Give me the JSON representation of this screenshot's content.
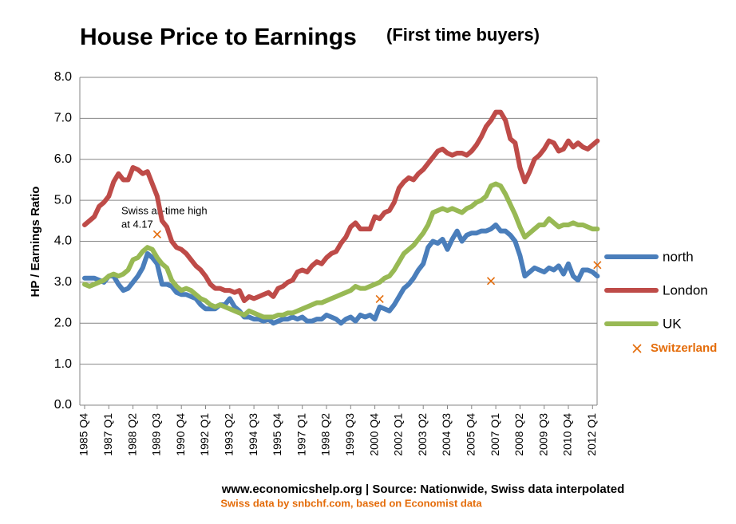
{
  "chart_data": {
    "type": "line",
    "title": "House Price to Earnings",
    "subtitle": "(First time buyers)",
    "y_label": "HP / Earnings Ratio",
    "annotation": [
      "Swiss all-time high",
      "at 4.17"
    ],
    "source": "www.economicshelp.org | Source: Nationwide, Swiss data interpolated",
    "note": "Swiss data by snbchf.com, based on Economist data",
    "ylim": [
      0,
      8
    ],
    "yticks": [
      {
        "value": 0,
        "label": "0.0"
      },
      {
        "value": 1,
        "label": "1.0"
      },
      {
        "value": 2,
        "label": "2.0"
      },
      {
        "value": 3,
        "label": "3.0"
      },
      {
        "value": 4,
        "label": "4.0"
      },
      {
        "value": 5,
        "label": "5.0"
      },
      {
        "value": 6,
        "label": "6.0"
      },
      {
        "value": 7,
        "label": "7.0"
      },
      {
        "value": 8,
        "label": "8.0"
      }
    ],
    "grid": true,
    "legend": "right",
    "categories": [
      "1985 Q4",
      null,
      null,
      null,
      null,
      "1987 Q1",
      null,
      null,
      null,
      null,
      "1988 Q2",
      null,
      null,
      null,
      null,
      "1989 Q3",
      null,
      null,
      null,
      null,
      "1990 Q4",
      null,
      null,
      null,
      null,
      "1992 Q1",
      null,
      null,
      null,
      null,
      "1993 Q2",
      null,
      null,
      null,
      null,
      "1994 Q3",
      null,
      null,
      null,
      null,
      "1995 Q4",
      null,
      null,
      null,
      null,
      "1997 Q1",
      null,
      null,
      null,
      null,
      "1998 Q2",
      null,
      null,
      null,
      null,
      "1999 Q3",
      null,
      null,
      null,
      null,
      "2000 Q4",
      null,
      null,
      null,
      null,
      "2002 Q1",
      null,
      null,
      null,
      null,
      "2003 Q2",
      null,
      null,
      null,
      null,
      "2004 Q3",
      null,
      null,
      null,
      null,
      "2005 Q4",
      null,
      null,
      null,
      null,
      "2007 Q1",
      null,
      null,
      null,
      null,
      "2008 Q2",
      null,
      null,
      null,
      null,
      "2009 Q3",
      null,
      null,
      null,
      null,
      "2010 Q4",
      null,
      null,
      null,
      null,
      "2012 Q1",
      null
    ],
    "series": [
      {
        "name": "north",
        "color": "#4a7ebb",
        "marker": "line",
        "values": [
          3.1,
          3.1,
          3.1,
          3.05,
          3.0,
          3.15,
          3.15,
          2.95,
          2.8,
          2.85,
          3.0,
          3.15,
          3.35,
          3.7,
          3.6,
          3.45,
          2.95,
          2.95,
          2.9,
          2.75,
          2.7,
          2.7,
          2.65,
          2.6,
          2.45,
          2.35,
          2.35,
          2.35,
          2.45,
          2.45,
          2.6,
          2.4,
          2.3,
          2.15,
          2.15,
          2.1,
          2.1,
          2.05,
          2.1,
          2.0,
          2.05,
          2.1,
          2.1,
          2.15,
          2.1,
          2.15,
          2.05,
          2.05,
          2.1,
          2.1,
          2.2,
          2.15,
          2.1,
          2.0,
          2.1,
          2.15,
          2.05,
          2.2,
          2.15,
          2.2,
          2.1,
          2.4,
          2.35,
          2.3,
          2.45,
          2.65,
          2.85,
          2.95,
          3.1,
          3.3,
          3.45,
          3.85,
          4.0,
          3.95,
          4.05,
          3.8,
          4.05,
          4.25,
          4.0,
          4.15,
          4.2,
          4.2,
          4.25,
          4.25,
          4.3,
          4.4,
          4.25,
          4.25,
          4.15,
          4.0,
          3.65,
          3.15,
          3.25,
          3.35,
          3.3,
          3.25,
          3.35,
          3.3,
          3.4,
          3.2,
          3.45,
          3.15,
          3.05,
          3.3,
          3.3,
          3.25,
          3.15
        ]
      },
      {
        "name": "London",
        "color": "#be4b48",
        "marker": "line",
        "values": [
          4.4,
          4.5,
          4.6,
          4.85,
          4.95,
          5.1,
          5.45,
          5.65,
          5.5,
          5.5,
          5.8,
          5.75,
          5.65,
          5.7,
          5.4,
          5.1,
          4.5,
          4.35,
          4.0,
          3.85,
          3.8,
          3.7,
          3.55,
          3.4,
          3.3,
          3.15,
          2.95,
          2.85,
          2.85,
          2.8,
          2.8,
          2.75,
          2.8,
          2.55,
          2.65,
          2.6,
          2.65,
          2.7,
          2.75,
          2.65,
          2.85,
          2.9,
          3.0,
          3.05,
          3.25,
          3.3,
          3.25,
          3.4,
          3.5,
          3.45,
          3.6,
          3.7,
          3.75,
          3.95,
          4.1,
          4.35,
          4.45,
          4.3,
          4.3,
          4.3,
          4.6,
          4.55,
          4.7,
          4.75,
          4.95,
          5.3,
          5.45,
          5.55,
          5.5,
          5.65,
          5.75,
          5.9,
          6.05,
          6.2,
          6.25,
          6.15,
          6.1,
          6.15,
          6.15,
          6.1,
          6.2,
          6.35,
          6.55,
          6.8,
          6.95,
          7.15,
          7.15,
          6.95,
          6.5,
          6.4,
          5.8,
          5.45,
          5.7,
          6.0,
          6.1,
          6.25,
          6.45,
          6.4,
          6.2,
          6.25,
          6.45,
          6.3,
          6.4,
          6.3,
          6.25,
          6.35,
          6.45
        ]
      },
      {
        "name": "UK",
        "color": "#98b954",
        "marker": "line",
        "values": [
          2.95,
          2.9,
          2.95,
          3.0,
          3.05,
          3.15,
          3.2,
          3.15,
          3.2,
          3.3,
          3.55,
          3.6,
          3.75,
          3.85,
          3.8,
          3.6,
          3.45,
          3.35,
          3.05,
          2.9,
          2.8,
          2.85,
          2.8,
          2.7,
          2.6,
          2.55,
          2.45,
          2.4,
          2.45,
          2.4,
          2.35,
          2.3,
          2.25,
          2.2,
          2.3,
          2.25,
          2.2,
          2.15,
          2.15,
          2.15,
          2.2,
          2.2,
          2.25,
          2.25,
          2.3,
          2.35,
          2.4,
          2.45,
          2.5,
          2.5,
          2.55,
          2.6,
          2.65,
          2.7,
          2.75,
          2.8,
          2.9,
          2.85,
          2.85,
          2.9,
          2.95,
          3.0,
          3.1,
          3.15,
          3.3,
          3.5,
          3.7,
          3.8,
          3.9,
          4.05,
          4.2,
          4.4,
          4.7,
          4.75,
          4.8,
          4.75,
          4.8,
          4.75,
          4.7,
          4.8,
          4.85,
          4.95,
          5.0,
          5.1,
          5.35,
          5.4,
          5.35,
          5.15,
          4.9,
          4.65,
          4.35,
          4.1,
          4.2,
          4.3,
          4.4,
          4.4,
          4.55,
          4.45,
          4.35,
          4.4,
          4.4,
          4.45,
          4.4,
          4.4,
          4.35,
          4.3,
          4.3
        ]
      },
      {
        "name": "Switzerland",
        "color": "#e46c0a",
        "marker": "x",
        "values": [
          null,
          null,
          null,
          null,
          null,
          null,
          null,
          null,
          null,
          null,
          null,
          null,
          null,
          null,
          null,
          4.17,
          null,
          null,
          null,
          null,
          null,
          null,
          null,
          null,
          null,
          null,
          null,
          null,
          null,
          null,
          null,
          null,
          null,
          null,
          null,
          null,
          null,
          null,
          null,
          null,
          null,
          null,
          null,
          null,
          null,
          null,
          null,
          null,
          null,
          null,
          null,
          null,
          null,
          null,
          null,
          null,
          null,
          null,
          null,
          null,
          null,
          2.59,
          null,
          null,
          null,
          null,
          null,
          null,
          null,
          null,
          null,
          null,
          null,
          null,
          null,
          null,
          null,
          null,
          null,
          null,
          null,
          null,
          null,
          null,
          3.03,
          null,
          null,
          null,
          null,
          null,
          null,
          null,
          null,
          null,
          null,
          null,
          null,
          null,
          null,
          null,
          null,
          null,
          null,
          null,
          null,
          null,
          3.42
        ]
      }
    ]
  }
}
